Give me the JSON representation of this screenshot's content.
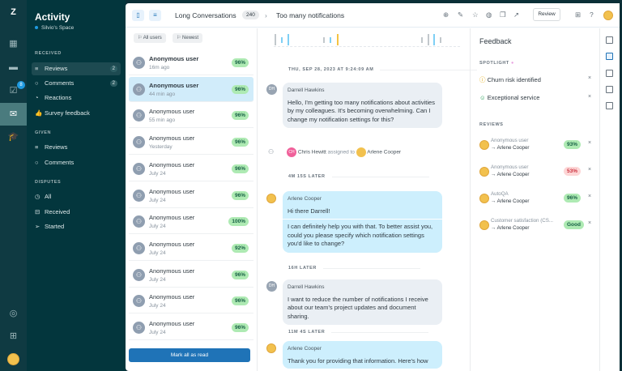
{
  "rail": {
    "icons": [
      "zendesk-logo",
      "dashboard-icon",
      "conversations-icon",
      "tasks-icon",
      "activity-icon",
      "training-icon",
      "help-icon",
      "apps-icon"
    ],
    "task_badge": "8"
  },
  "nav": {
    "title": "Activity",
    "space": "Silvio's Space",
    "received_label": "RECEIVED",
    "received": [
      {
        "label": "Reviews",
        "count": "2"
      },
      {
        "label": "Comments",
        "count": "2"
      },
      {
        "label": "Reactions"
      },
      {
        "label": "Survey feedback"
      }
    ],
    "given_label": "GIVEN",
    "given": [
      {
        "label": "Reviews"
      },
      {
        "label": "Comments"
      }
    ],
    "disputes_label": "DISPUTES",
    "disputes": [
      {
        "label": "All"
      },
      {
        "label": "Received"
      },
      {
        "label": "Started"
      }
    ]
  },
  "header": {
    "filter_name": "Long Conversations",
    "filter_count": "240",
    "conversation_title": "Too many notifications",
    "review_label": "Review"
  },
  "list": {
    "filters": [
      "All users",
      "Newest"
    ],
    "mark_all_label": "Mark all as read",
    "items": [
      {
        "name": "Anonymous user",
        "time": "16m ago",
        "score": "96%"
      },
      {
        "name": "Anonymous user",
        "time": "44 min ago",
        "score": "96%"
      },
      {
        "name": "Anonymous user",
        "time": "55 min ago",
        "score": "96%"
      },
      {
        "name": "Anonymous user",
        "time": "Yesterday",
        "score": "96%"
      },
      {
        "name": "Anonymous user",
        "time": "July 24",
        "score": "96%"
      },
      {
        "name": "Anonymous user",
        "time": "July 24",
        "score": "96%"
      },
      {
        "name": "Anonymous user",
        "time": "July 24",
        "score": "100%"
      },
      {
        "name": "Anonymous user",
        "time": "July 24",
        "score": "92%"
      },
      {
        "name": "Anonymous user",
        "time": "July 24",
        "score": "96%"
      },
      {
        "name": "Anonymous user",
        "time": "July 24",
        "score": "96%"
      },
      {
        "name": "Anonymous user",
        "time": "July 24",
        "score": "96%"
      }
    ]
  },
  "chat": {
    "date": "THU, SEP 28, 2023 AT 9:24:09 AM",
    "m1": {
      "initials": "DH",
      "author": "Darrell Hawkins",
      "text": "Hello, I'm getting too many notifications about activities by my colleagues. It's becoming overwhelming. Can I change my notification settings for this?"
    },
    "assign": {
      "initials": "CH",
      "actor": "Chris Hewitt",
      "verb": "assigned to",
      "target": "Arlene Cooper"
    },
    "gap1": "4M 15S LATER",
    "m2": {
      "author": "Arlene Cooper",
      "text1": "Hi there Darrell!",
      "text2": "I can definitely help you with that. To better assist you, could you please specify which notification settings you'd like to change?"
    },
    "gap2": "16H LATER",
    "m3": {
      "initials": "DH",
      "author": "Darrell Hawkins",
      "text": "I want to reduce the number of notifications I receive about our team's project updates and document sharing."
    },
    "gap3": "11M 4S LATER",
    "m4": {
      "author": "Arlene Cooper",
      "text": "Thank you for providing that information. Here's how"
    }
  },
  "feedback": {
    "title": "Feedback",
    "spotlight_label": "SPOTLIGHT",
    "spotlight": [
      "Churn risk identified",
      "Exceptional service"
    ],
    "reviews_label": "REVIEWS",
    "reviews": [
      {
        "source": "Anonymous user",
        "target": "→ Arlene Cooper",
        "score": "93%",
        "tone": "good"
      },
      {
        "source": "Anonymous user",
        "target": "→ Arlene Cooper",
        "score": "53%",
        "tone": "bad"
      },
      {
        "source": "AutoQA",
        "target": "→ Arlene Cooper",
        "score": "96%",
        "tone": "good"
      },
      {
        "source": "Customer satisfaction (CS...",
        "target": "→ Arlene Cooper",
        "score": "Good",
        "tone": "good"
      }
    ]
  },
  "colors": {
    "nav_bg": "#03363d",
    "accent": "#1f73b7",
    "agent_bubble": "#cdeffd",
    "good": "#aeeab3",
    "bad": "#fdd6d6"
  }
}
